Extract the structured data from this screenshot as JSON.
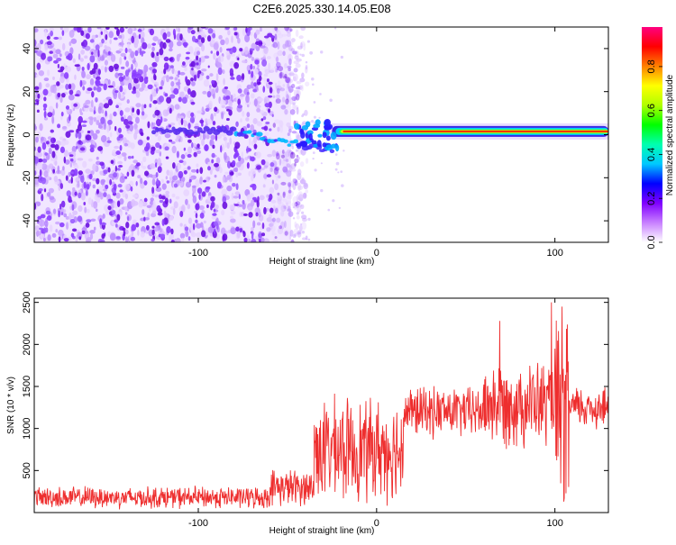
{
  "title": "C2E6.2025.330.14.05.E08",
  "colorbar": {
    "label": "Normalized spectral amplitude",
    "ticks": [
      "0.0",
      "0.2",
      "0.4",
      "0.6",
      "0.8"
    ],
    "stops": [
      "#ffffff",
      "#c880ff",
      "#8000ff",
      "#0000ff",
      "#00c8ff",
      "#00ffb0",
      "#00ff00",
      "#b0ff00",
      "#ffff00",
      "#ff8000",
      "#ff0000",
      "#ff0080"
    ]
  },
  "chart_data": [
    {
      "type": "heatmap",
      "name": "spectrogram",
      "xlabel": "Height of straight line (km)",
      "ylabel": "Frequency (Hz)",
      "xlim": [
        -192,
        130
      ],
      "ylim": [
        -50,
        50
      ],
      "xticks": [
        "-100",
        "0",
        "100"
      ],
      "yticks": [
        "40",
        "20",
        "0",
        "-20",
        "-40"
      ],
      "xtick_values": [
        -100,
        0,
        100
      ],
      "ytick_values": [
        40,
        20,
        0,
        -20,
        -40
      ],
      "value_range": [
        0,
        1
      ],
      "features": {
        "noise_region_km": [
          -192,
          -48
        ],
        "signal_line_hz": 1.5,
        "signal_start_km": -25,
        "signal_peak_amplitude": 1.0
      }
    },
    {
      "type": "line",
      "name": "snr",
      "xlabel": "Height of straight line (km)",
      "ylabel": "SNR (10 * v/v)",
      "xlim": [
        -192,
        130
      ],
      "ylim": [
        0,
        2550
      ],
      "xticks": [
        "-100",
        "0",
        "100"
      ],
      "yticks": [
        "500",
        "1000",
        "1500",
        "2000",
        "2500"
      ],
      "xtick_values": [
        -100,
        0,
        100
      ],
      "ytick_values": [
        500,
        1000,
        1500,
        2000,
        2500
      ],
      "color": "#ee2e2e",
      "baseline_segments": [
        {
          "x": [
            -192,
            -60
          ],
          "mean": 180,
          "spread": 150
        },
        {
          "x": [
            -60,
            -35
          ],
          "mean": 300,
          "spread": 250
        },
        {
          "x": [
            -35,
            15
          ],
          "mean": 750,
          "spread": 700
        },
        {
          "x": [
            15,
            60
          ],
          "mean": 1200,
          "spread": 350
        },
        {
          "x": [
            60,
            100
          ],
          "mean": 1300,
          "spread": 600
        },
        {
          "x": [
            100,
            108
          ],
          "mean": 1100,
          "spread": 1300
        },
        {
          "x": [
            108,
            130
          ],
          "mean": 1250,
          "spread": 300
        }
      ],
      "peaks": [
        {
          "x": 98,
          "y": 2500
        },
        {
          "x": 104,
          "y": 2450
        },
        {
          "x": 69,
          "y": 2280
        },
        {
          "x": 105,
          "y": 130
        }
      ]
    }
  ]
}
